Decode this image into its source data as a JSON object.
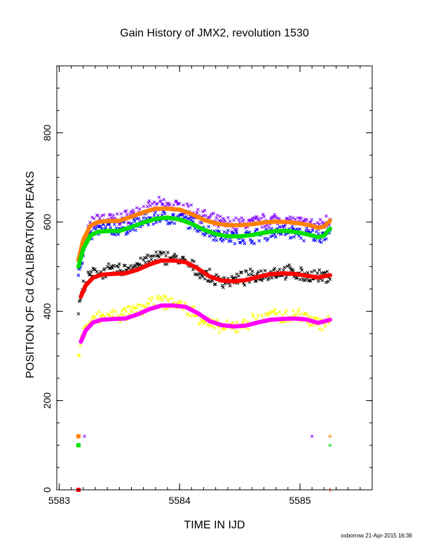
{
  "chart_data": {
    "type": "scatter",
    "title": "Gain History of JMX2, revolution 1530",
    "xlabel": "TIME IN IJD",
    "ylabel": "POSITION OF Cd CALIBRATION PEAKS",
    "footer": "oxborrow 21-Apr-2015 16:36",
    "xlim": [
      5582.98,
      5585.6
    ],
    "ylim": [
      0,
      950
    ],
    "xticks": [
      "5583",
      "5584",
      "5585"
    ],
    "xtick_values": [
      5583,
      5584,
      5585
    ],
    "xminor_step": 0.1,
    "yticks": [
      "0",
      "200",
      "400",
      "600",
      "800"
    ],
    "ytick_values": [
      0,
      200,
      400,
      600,
      800
    ],
    "yminor_step": 50,
    "grid": false,
    "series": [
      {
        "color": "#ff8000",
        "marker": "line",
        "x": [
          5583.16,
          5583.2,
          5583.26,
          5583.32,
          5583.4,
          5583.5,
          5583.6,
          5583.7,
          5583.8,
          5583.9,
          5584.0,
          5584.1,
          5584.2,
          5584.3,
          5584.4,
          5584.5,
          5584.6,
          5584.7,
          5584.8,
          5584.9,
          5585.0,
          5585.1,
          5585.15,
          5585.2,
          5585.25
        ],
        "y": [
          515,
          560,
          592,
          600,
          602,
          603,
          612,
          622,
          630,
          630,
          628,
          618,
          605,
          597,
          593,
          593,
          595,
          599,
          601,
          600,
          597,
          592,
          587,
          590,
          603
        ]
      },
      {
        "color": "#00e000",
        "marker": "line",
        "x": [
          5583.16,
          5583.2,
          5583.26,
          5583.32,
          5583.4,
          5583.5,
          5583.6,
          5583.7,
          5583.8,
          5583.9,
          5584.0,
          5584.1,
          5584.2,
          5584.3,
          5584.4,
          5584.5,
          5584.6,
          5584.7,
          5584.8,
          5584.9,
          5585.0,
          5585.1,
          5585.15,
          5585.2,
          5585.25
        ],
        "y": [
          500,
          540,
          570,
          578,
          580,
          580,
          589,
          599,
          607,
          610,
          606,
          596,
          583,
          573,
          568,
          568,
          571,
          576,
          580,
          580,
          576,
          570,
          566,
          570,
          585
        ]
      },
      {
        "color": "#ff0000",
        "marker": "line",
        "x": [
          5583.18,
          5583.22,
          5583.28,
          5583.35,
          5583.45,
          5583.55,
          5583.65,
          5583.75,
          5583.85,
          5583.95,
          5584.05,
          5584.15,
          5584.25,
          5584.35,
          5584.45,
          5584.55,
          5584.65,
          5584.75,
          5584.85,
          5584.95,
          5585.05,
          5585.15,
          5585.25
        ],
        "y": [
          433,
          458,
          475,
          482,
          484,
          485,
          493,
          505,
          514,
          514,
          510,
          496,
          478,
          469,
          467,
          470,
          477,
          483,
          485,
          484,
          480,
          476,
          481
        ]
      },
      {
        "color": "#ff00ff",
        "marker": "line",
        "x": [
          5583.18,
          5583.22,
          5583.28,
          5583.35,
          5583.45,
          5583.55,
          5583.65,
          5583.75,
          5583.85,
          5583.95,
          5584.05,
          5584.15,
          5584.25,
          5584.35,
          5584.45,
          5584.55,
          5584.65,
          5584.75,
          5584.85,
          5584.95,
          5585.05,
          5585.15,
          5585.25
        ],
        "y": [
          332,
          357,
          375,
          381,
          383,
          384,
          393,
          405,
          413,
          413,
          410,
          396,
          378,
          369,
          366,
          368,
          375,
          381,
          383,
          384,
          382,
          374,
          381
        ]
      },
      {
        "color": "#8000ff",
        "marker": "x",
        "x": [
          5583.16,
          5583.22,
          5583.28,
          5583.35,
          5583.45,
          5583.55,
          5583.65,
          5583.75,
          5583.85,
          5583.95,
          5584.05,
          5584.15,
          5584.25,
          5584.35,
          5584.45,
          5584.55,
          5584.65,
          5584.75,
          5584.85,
          5584.95,
          5585.05,
          5585.15,
          5585.25
        ],
        "y": [
          505,
          565,
          600,
          608,
          605,
          610,
          625,
          630,
          640,
          635,
          630,
          620,
          605,
          598,
          595,
          598,
          600,
          605,
          605,
          600,
          595,
          590,
          608
        ]
      },
      {
        "color": "#0000ff",
        "marker": "x",
        "x": [
          5583.16,
          5583.22,
          5583.28,
          5583.35,
          5583.45,
          5583.55,
          5583.65,
          5583.75,
          5583.85,
          5583.95,
          5584.05,
          5584.15,
          5584.25,
          5584.35,
          5584.45,
          5584.55,
          5584.65,
          5584.75,
          5584.85,
          5584.95,
          5585.05,
          5585.15,
          5585.25
        ],
        "y": [
          490,
          548,
          578,
          585,
          584,
          586,
          596,
          605,
          612,
          608,
          603,
          592,
          578,
          570,
          566,
          567,
          570,
          576,
          578,
          577,
          572,
          566,
          580
        ]
      },
      {
        "color": "#000000",
        "marker": "x",
        "x": [
          5583.16,
          5583.2,
          5583.26,
          5583.32,
          5583.4,
          5583.5,
          5583.6,
          5583.7,
          5583.8,
          5583.9,
          5584.0,
          5584.1,
          5584.2,
          5584.3,
          5584.4,
          5584.5,
          5584.6,
          5584.7,
          5584.8,
          5584.9,
          5585.0,
          5585.1,
          5585.2,
          5585.25
        ],
        "y": [
          405,
          455,
          480,
          488,
          490,
          492,
          500,
          510,
          520,
          522,
          515,
          500,
          482,
          470,
          468,
          472,
          478,
          484,
          488,
          488,
          482,
          478,
          476,
          482
        ]
      },
      {
        "color": "#ffff00",
        "marker": "x",
        "x": [
          5583.16,
          5583.2,
          5583.26,
          5583.32,
          5583.4,
          5583.5,
          5583.6,
          5583.7,
          5583.8,
          5583.9,
          5584.0,
          5584.1,
          5584.2,
          5584.3,
          5584.4,
          5584.5,
          5584.6,
          5584.7,
          5584.8,
          5584.9,
          5585.0,
          5585.1,
          5585.2,
          5585.25
        ],
        "y": [
          300,
          355,
          375,
          385,
          388,
          390,
          398,
          408,
          418,
          420,
          415,
          400,
          380,
          365,
          362,
          368,
          378,
          385,
          390,
          390,
          392,
          382,
          370,
          380
        ]
      }
    ],
    "reference_markers": [
      {
        "marker": "square",
        "color": "#ff8000",
        "x": 5583.16,
        "y": 120
      },
      {
        "marker": "square",
        "color": "#00e000",
        "x": 5583.16,
        "y": 100
      },
      {
        "marker": "x",
        "color": "#8000ff",
        "x": 5583.21,
        "y": 120
      },
      {
        "marker": "square",
        "color": "#ff0000",
        "x": 5583.16,
        "y": 0
      },
      {
        "marker": "x",
        "color": "#8000ff",
        "x": 5585.1,
        "y": 120
      },
      {
        "marker": "plus",
        "color": "#ff8000",
        "x": 5585.25,
        "y": 120
      },
      {
        "marker": "plus",
        "color": "#00e000",
        "x": 5585.25,
        "y": 100
      },
      {
        "marker": "plus",
        "color": "#ff0000",
        "x": 5585.25,
        "y": 0
      }
    ]
  }
}
